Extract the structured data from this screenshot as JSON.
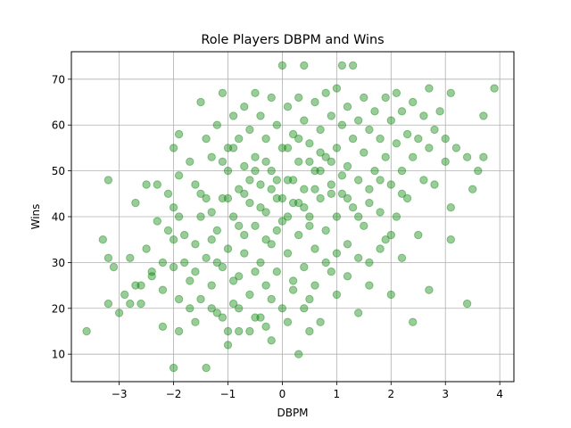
{
  "chart_data": {
    "type": "scatter",
    "title": "Role Players DBPM and Wins",
    "xlabel": "DBPM",
    "ylabel": "Wins",
    "xlim": [
      -3.88,
      4.26
    ],
    "ylim": [
      4.0,
      76.0
    ],
    "xticks": [
      -3,
      -2,
      -1,
      0,
      1,
      2,
      3,
      4
    ],
    "yticks": [
      10,
      20,
      30,
      40,
      50,
      60,
      70
    ],
    "grid": true,
    "marker_color": "#008000",
    "marker_alpha": 0.4,
    "series": [
      {
        "points": [
          [
            -3.6,
            15
          ],
          [
            -3.3,
            35
          ],
          [
            -3.2,
            31
          ],
          [
            -3.2,
            48
          ],
          [
            -3.2,
            21
          ],
          [
            -3.1,
            29
          ],
          [
            -3.0,
            19
          ],
          [
            -2.9,
            23
          ],
          [
            -2.8,
            31
          ],
          [
            -2.7,
            43
          ],
          [
            -2.7,
            25
          ],
          [
            -2.6,
            21
          ],
          [
            -2.5,
            47
          ],
          [
            -2.5,
            33
          ],
          [
            -2.4,
            27
          ],
          [
            -2.3,
            47
          ],
          [
            -2.3,
            39
          ],
          [
            -2.2,
            24
          ],
          [
            -2.2,
            16
          ],
          [
            -2.1,
            45
          ],
          [
            -2.1,
            37
          ],
          [
            -2.0,
            55
          ],
          [
            -2.0,
            42
          ],
          [
            -2.0,
            29
          ],
          [
            -2.0,
            7
          ],
          [
            -1.9,
            58
          ],
          [
            -1.9,
            49
          ],
          [
            -1.9,
            22
          ],
          [
            -1.8,
            36
          ],
          [
            -1.7,
            52
          ],
          [
            -1.6,
            47
          ],
          [
            -1.6,
            28
          ],
          [
            -1.6,
            17
          ],
          [
            -1.5,
            65
          ],
          [
            -1.5,
            45
          ],
          [
            -1.4,
            57
          ],
          [
            -1.4,
            31
          ],
          [
            -1.4,
            7
          ],
          [
            -1.3,
            53
          ],
          [
            -1.3,
            41
          ],
          [
            -1.3,
            25
          ],
          [
            -1.2,
            60
          ],
          [
            -1.2,
            37
          ],
          [
            -1.2,
            19
          ],
          [
            -1.1,
            67
          ],
          [
            -1.1,
            44
          ],
          [
            -1.1,
            29
          ],
          [
            -1.0,
            55
          ],
          [
            -1.0,
            50
          ],
          [
            -1.0,
            33
          ],
          [
            -1.0,
            12
          ],
          [
            -0.9,
            62
          ],
          [
            -0.9,
            40
          ],
          [
            -0.9,
            21
          ],
          [
            -0.8,
            57
          ],
          [
            -0.8,
            46
          ],
          [
            -0.8,
            27
          ],
          [
            -0.8,
            15
          ],
          [
            -0.7,
            64
          ],
          [
            -0.7,
            51
          ],
          [
            -0.7,
            36
          ],
          [
            -0.6,
            59
          ],
          [
            -0.6,
            43
          ],
          [
            -0.6,
            23
          ],
          [
            -0.5,
            67
          ],
          [
            -0.5,
            53
          ],
          [
            -0.5,
            38
          ],
          [
            -0.5,
            18
          ],
          [
            -0.4,
            62
          ],
          [
            -0.4,
            47
          ],
          [
            -0.4,
            30
          ],
          [
            -0.3,
            57
          ],
          [
            -0.3,
            41
          ],
          [
            -0.3,
            25
          ],
          [
            -0.2,
            66
          ],
          [
            -0.2,
            50
          ],
          [
            -0.2,
            34
          ],
          [
            -0.2,
            13
          ],
          [
            -0.1,
            60
          ],
          [
            -0.1,
            44
          ],
          [
            -0.1,
            28
          ],
          [
            0.0,
            73
          ],
          [
            0.0,
            55
          ],
          [
            0.0,
            39
          ],
          [
            0.0,
            20
          ],
          [
            0.1,
            64
          ],
          [
            0.1,
            48
          ],
          [
            0.1,
            32
          ],
          [
            0.2,
            58
          ],
          [
            0.2,
            43
          ],
          [
            0.2,
            26
          ],
          [
            0.3,
            66
          ],
          [
            0.3,
            52
          ],
          [
            0.3,
            36
          ],
          [
            0.3,
            10
          ],
          [
            0.4,
            73
          ],
          [
            0.4,
            61
          ],
          [
            0.4,
            46
          ],
          [
            0.4,
            29
          ],
          [
            0.5,
            56
          ],
          [
            0.5,
            40
          ],
          [
            0.5,
            22
          ],
          [
            0.6,
            65
          ],
          [
            0.6,
            50
          ],
          [
            0.6,
            33
          ],
          [
            0.7,
            59
          ],
          [
            0.7,
            44
          ],
          [
            0.7,
            17
          ],
          [
            0.8,
            67
          ],
          [
            0.8,
            53
          ],
          [
            0.8,
            37
          ],
          [
            0.9,
            62
          ],
          [
            0.9,
            47
          ],
          [
            0.9,
            28
          ],
          [
            1.0,
            68
          ],
          [
            1.0,
            55
          ],
          [
            1.0,
            40
          ],
          [
            1.0,
            23
          ],
          [
            1.1,
            73
          ],
          [
            1.1,
            60
          ],
          [
            1.1,
            45
          ],
          [
            1.2,
            64
          ],
          [
            1.2,
            51
          ],
          [
            1.2,
            34
          ],
          [
            1.3,
            73
          ],
          [
            1.3,
            57
          ],
          [
            1.3,
            42
          ],
          [
            1.4,
            61
          ],
          [
            1.4,
            48
          ],
          [
            1.4,
            19
          ],
          [
            1.5,
            66
          ],
          [
            1.5,
            54
          ],
          [
            1.5,
            38
          ],
          [
            1.6,
            59
          ],
          [
            1.6,
            46
          ],
          [
            1.6,
            30
          ],
          [
            1.7,
            63
          ],
          [
            1.7,
            50
          ],
          [
            1.8,
            57
          ],
          [
            1.8,
            41
          ],
          [
            1.9,
            66
          ],
          [
            1.9,
            53
          ],
          [
            1.9,
            35
          ],
          [
            2.0,
            61
          ],
          [
            2.0,
            47
          ],
          [
            2.0,
            23
          ],
          [
            2.1,
            67
          ],
          [
            2.1,
            56
          ],
          [
            2.1,
            40
          ],
          [
            2.2,
            63
          ],
          [
            2.2,
            50
          ],
          [
            2.2,
            31
          ],
          [
            2.3,
            58
          ],
          [
            2.3,
            44
          ],
          [
            2.4,
            65
          ],
          [
            2.4,
            53
          ],
          [
            2.4,
            17
          ],
          [
            2.5,
            57
          ],
          [
            2.5,
            36
          ],
          [
            2.6,
            62
          ],
          [
            2.6,
            48
          ],
          [
            2.7,
            68
          ],
          [
            2.7,
            55
          ],
          [
            2.7,
            24
          ],
          [
            2.8,
            59
          ],
          [
            2.8,
            47
          ],
          [
            2.9,
            63
          ],
          [
            3.0,
            57
          ],
          [
            3.0,
            52
          ],
          [
            3.1,
            67
          ],
          [
            3.1,
            42
          ],
          [
            3.1,
            35
          ],
          [
            3.2,
            55
          ],
          [
            3.4,
            53
          ],
          [
            3.4,
            21
          ],
          [
            3.5,
            46
          ],
          [
            3.6,
            50
          ],
          [
            3.7,
            62
          ],
          [
            3.7,
            53
          ],
          [
            3.9,
            68
          ],
          [
            -1.5,
            40
          ],
          [
            -1.3,
            35
          ],
          [
            -1.0,
            44
          ],
          [
            -0.8,
            38
          ],
          [
            -0.6,
            48
          ],
          [
            -0.4,
            42
          ],
          [
            -0.2,
            46
          ],
          [
            0.0,
            44
          ],
          [
            0.2,
            48
          ],
          [
            0.4,
            42
          ],
          [
            0.6,
            46
          ],
          [
            -1.2,
            30
          ],
          [
            -0.9,
            26
          ],
          [
            -0.7,
            32
          ],
          [
            -0.5,
            28
          ],
          [
            -0.3,
            35
          ],
          [
            -0.1,
            37
          ],
          [
            0.1,
            40
          ],
          [
            0.3,
            43
          ],
          [
            0.5,
            38
          ],
          [
            0.7,
            50
          ],
          [
            0.9,
            45
          ],
          [
            1.1,
            49
          ],
          [
            -1.7,
            26
          ],
          [
            -1.5,
            22
          ],
          [
            -1.8,
            30
          ],
          [
            -1.6,
            34
          ],
          [
            -1.4,
            44
          ],
          [
            -1.1,
            52
          ],
          [
            -0.9,
            55
          ],
          [
            -0.7,
            45
          ],
          [
            -0.5,
            50
          ],
          [
            -0.3,
            52
          ],
          [
            -0.1,
            48
          ],
          [
            0.1,
            55
          ],
          [
            0.3,
            57
          ],
          [
            0.5,
            52
          ],
          [
            0.7,
            54
          ],
          [
            0.9,
            52
          ],
          [
            1.2,
            44
          ],
          [
            1.4,
            40
          ],
          [
            1.6,
            43
          ],
          [
            1.8,
            48
          ],
          [
            -2.2,
            30
          ],
          [
            -2.4,
            28
          ],
          [
            -2.0,
            35
          ],
          [
            -1.9,
            40
          ],
          [
            -1.7,
            20
          ],
          [
            -1.1,
            18
          ],
          [
            -0.8,
            20
          ],
          [
            -0.4,
            18
          ],
          [
            -0.2,
            22
          ],
          [
            0.2,
            24
          ],
          [
            0.4,
            20
          ],
          [
            0.6,
            25
          ],
          [
            0.8,
            30
          ],
          [
            1.0,
            32
          ],
          [
            1.2,
            27
          ],
          [
            1.4,
            31
          ],
          [
            1.6,
            25
          ],
          [
            1.8,
            33
          ],
          [
            2.0,
            36
          ],
          [
            2.2,
            45
          ],
          [
            -2.6,
            25
          ],
          [
            -2.8,
            21
          ],
          [
            -0.6,
            15
          ],
          [
            -0.3,
            16
          ],
          [
            0.1,
            17
          ],
          [
            0.5,
            15
          ],
          [
            -1.0,
            15
          ],
          [
            -1.3,
            20
          ],
          [
            -1.9,
            15
          ]
        ]
      }
    ]
  }
}
